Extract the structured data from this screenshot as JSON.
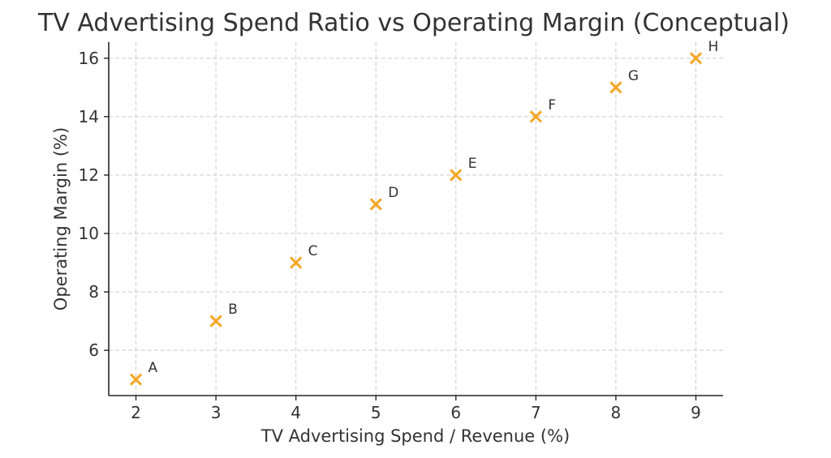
{
  "chart_data": {
    "type": "scatter",
    "title": "TV Advertising Spend Ratio vs Operating Margin (Conceptual)",
    "xlabel": "TV Advertising Spend / Revenue (%)",
    "ylabel": "Operating Margin (%)",
    "xlim": [
      1.66,
      9.34
    ],
    "ylim": [
      4.45,
      16.55
    ],
    "xticks": [
      2,
      3,
      4,
      5,
      6,
      7,
      8,
      9
    ],
    "yticks": [
      6,
      8,
      10,
      12,
      14,
      16
    ],
    "grid": true,
    "marker": "x",
    "marker_color": "#F5A623",
    "points": [
      {
        "label": "A",
        "x": 2,
        "y": 5
      },
      {
        "label": "B",
        "x": 3,
        "y": 7
      },
      {
        "label": "C",
        "x": 4,
        "y": 9
      },
      {
        "label": "D",
        "x": 5,
        "y": 11
      },
      {
        "label": "E",
        "x": 6,
        "y": 12
      },
      {
        "label": "F",
        "x": 7,
        "y": 14
      },
      {
        "label": "G",
        "x": 8,
        "y": 15
      },
      {
        "label": "H",
        "x": 9,
        "y": 16
      }
    ]
  }
}
